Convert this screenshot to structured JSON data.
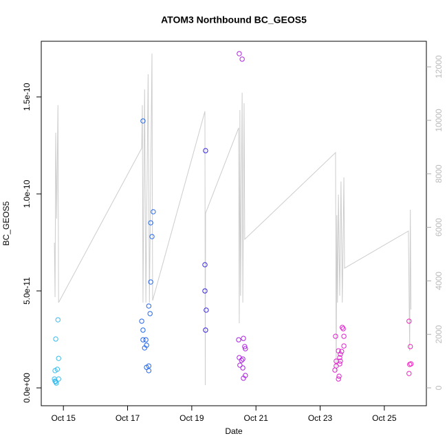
{
  "chart_data": {
    "type": "scatter",
    "title": "ATOM3 Northbound BC_GEOS5",
    "xlabel": "Date",
    "ylabel": "BC_GEOS5",
    "xlim": [
      14.31,
      26.31
    ],
    "xticks": [
      {
        "value": 15,
        "label": "Oct 15"
      },
      {
        "value": 17,
        "label": "Oct 17"
      },
      {
        "value": 19,
        "label": "Oct 19"
      },
      {
        "value": 21,
        "label": "Oct 21"
      },
      {
        "value": 23,
        "label": "Oct 23"
      },
      {
        "value": 25,
        "label": "Oct 25"
      }
    ],
    "ylim": [
      -9.2e-12,
      1.787e-10
    ],
    "yticks": [
      {
        "value": 0,
        "label": "0.0e+00"
      },
      {
        "value": 5e-11,
        "label": "5.0e-11"
      },
      {
        "value": 1e-10,
        "label": "1.0e-10"
      },
      {
        "value": 1.5e-10,
        "label": "1.5e-10"
      }
    ],
    "y2lim": [
      -668,
      12956
    ],
    "y2ticks": [
      0,
      2000,
      4000,
      6000,
      8000,
      10000,
      12000
    ],
    "series": [
      {
        "type": "line",
        "axis": "y2",
        "color": "#cccccc",
        "x": [
          14.72,
          14.74,
          14.76,
          14.79,
          14.83,
          14.85,
          17.44,
          17.46,
          17.48,
          17.53,
          17.57,
          17.64,
          17.68,
          17.76,
          17.78,
          19.41,
          19.42,
          19.43,
          20.46,
          20.48,
          20.5,
          20.52,
          20.57,
          20.59,
          20.63,
          20.65,
          23.48,
          23.5,
          23.52,
          23.54,
          23.57,
          23.61,
          23.65,
          23.69,
          23.74,
          23.76,
          25.75,
          25.79,
          25.81,
          25.83
        ],
        "values": [
          5425,
          3394,
          9538,
          6325,
          10568,
          3188,
          8959,
          10568,
          3188,
          11158,
          3188,
          11724,
          3188,
          12495,
          3265,
          10336,
          103,
          6530,
          9718,
          2417,
          10387,
          3445,
          11030,
          3188,
          10644,
          5553,
          8793,
          617,
          6453,
          3188,
          7225,
          3445,
          7713,
          3188,
          7867,
          4474,
          5862,
          1388,
          6659,
          2931
        ]
      },
      {
        "type": "scatter",
        "color": "#33bbee",
        "x": [
          14.83,
          14.76,
          14.85,
          14.74,
          14.81,
          14.72,
          14.76,
          14.78,
          14.85,
          14.74
        ],
        "values": [
          3.51e-11,
          2.52e-11,
          1.52e-11,
          8.9e-12,
          9.6e-12,
          4.6e-12,
          3.2e-12,
          2.5e-12,
          4.6e-12,
          3.5e-12
        ]
      },
      {
        "type": "scatter",
        "color": "#2266ee",
        "x": [
          17.48,
          17.8,
          17.72,
          17.76,
          17.72,
          17.66,
          17.7,
          17.44,
          17.48,
          17.57,
          17.48,
          17.59,
          17.53,
          17.66,
          17.59,
          17.66
        ],
        "values": [
          1.376e-10,
          9.08e-11,
          8.51e-11,
          7.8e-11,
          5.46e-11,
          4.22e-11,
          3.83e-11,
          3.44e-11,
          2.98e-11,
          2.48e-11,
          2.48e-11,
          2.2e-11,
          2.06e-11,
          1.13e-11,
          1.06e-11,
          8.9e-12
        ]
      },
      {
        "type": "scatter",
        "color": "#3322dd",
        "x": [
          19.43,
          19.41,
          19.41,
          19.45,
          19.43
        ],
        "values": [
          1.223e-10,
          6.35e-11,
          5e-11,
          4.01e-11,
          2.98e-11
        ]
      },
      {
        "type": "scatter",
        "color": "#aa22dd",
        "x": [
          20.48,
          20.57,
          20.46,
          20.61,
          20.65,
          20.67,
          20.48,
          20.59,
          20.55,
          20.5,
          20.59,
          20.67,
          20.61
        ],
        "values": [
          1.723e-10,
          1.695e-10,
          2.48e-11,
          2.55e-11,
          2.13e-11,
          2.02e-11,
          1.56e-11,
          1.49e-11,
          1.42e-11,
          1.17e-11,
          1.03e-11,
          6.4e-12,
          5e-12
        ]
      },
      {
        "type": "scatter",
        "color": "#dd22cc",
        "x": [
          23.48,
          23.69,
          23.72,
          23.74,
          23.74,
          23.57,
          23.67,
          23.63,
          23.61,
          23.63,
          23.5,
          23.61,
          23.5,
          23.46,
          23.59,
          23.57
        ],
        "values": [
          2.66e-11,
          3.12e-11,
          3.05e-11,
          2.66e-11,
          2.16e-11,
          1.91e-11,
          1.88e-11,
          1.74e-11,
          1.56e-11,
          1.38e-11,
          1.38e-11,
          1.24e-11,
          1.13e-11,
          9.2e-12,
          6e-12,
          4.6e-12
        ]
      },
      {
        "type": "scatter",
        "color": "#ee22bb",
        "x": [
          25.77,
          25.81,
          25.79,
          25.83,
          25.77
        ],
        "values": [
          3.44e-11,
          2.13e-11,
          1.21e-11,
          1.24e-11,
          7.4e-12
        ]
      }
    ]
  }
}
